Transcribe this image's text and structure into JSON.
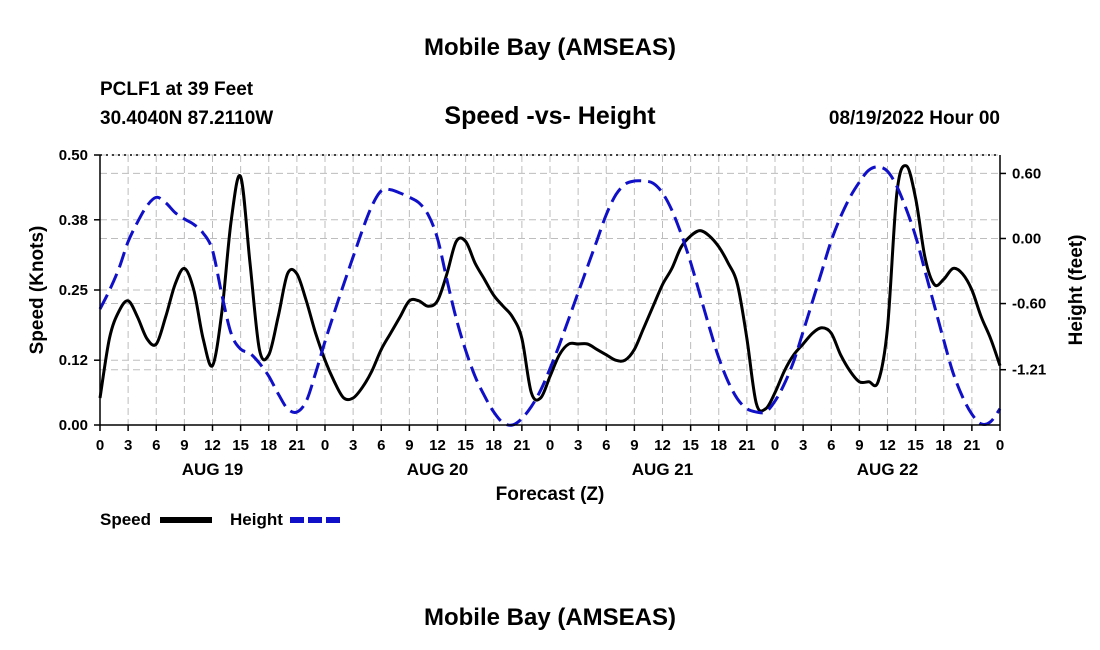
{
  "header": {
    "title": "Mobile Bay (AMSEAS)",
    "station": "PCLF1 at 39 Feet",
    "coords": "30.4040N  87.2110W",
    "subtitle": "Speed -vs- Height",
    "datetime": "08/19/2022 Hour 00"
  },
  "footer": {
    "title": "Mobile Bay (AMSEAS)"
  },
  "colors": {
    "speed": "#000000",
    "height": "#1010c8",
    "grid": "#bdbdbd"
  },
  "chart_data": {
    "type": "line",
    "xlabel": "Forecast (Z)",
    "ylabel": "Speed (Knots)",
    "y2label": "Height (feet)",
    "x_unit": "hours since 08/19/2022 00Z",
    "xlim": [
      0,
      96
    ],
    "ylim": [
      0,
      0.5
    ],
    "y2lim": [
      -1.72,
      0.77
    ],
    "y_ticks": [
      "0.00",
      "0.12",
      "0.25",
      "0.38",
      "0.50"
    ],
    "y2_ticks": [
      "0.60",
      "0.00",
      "-0.60",
      "-1.21"
    ],
    "y2_tick_values": [
      0.6,
      0.0,
      -0.6,
      -1.21
    ],
    "x_tick_labels": [
      "0",
      "3",
      "6",
      "9",
      "12",
      "15",
      "18",
      "21",
      "0",
      "3",
      "6",
      "9",
      "12",
      "15",
      "18",
      "21",
      "0",
      "3",
      "6",
      "9",
      "12",
      "15",
      "18",
      "21",
      "0",
      "3",
      "6",
      "9",
      "12",
      "15",
      "18",
      "21",
      "0"
    ],
    "day_labels": [
      {
        "label": "AUG 19",
        "x": 12
      },
      {
        "label": "AUG 20",
        "x": 36
      },
      {
        "label": "AUG 21",
        "x": 60
      },
      {
        "label": "AUG 22",
        "x": 84
      }
    ],
    "grid": true,
    "legend": {
      "position": "bottom-left",
      "entries": [
        "Speed",
        "Height"
      ]
    },
    "series": [
      {
        "name": "Speed",
        "style": "solid",
        "axis": "left",
        "x": [
          0,
          1,
          2,
          3,
          4,
          5,
          6,
          7,
          8,
          9,
          10,
          11,
          12,
          13,
          14,
          15,
          16,
          17,
          18,
          19,
          20,
          21,
          22,
          23,
          24,
          25,
          26,
          27,
          28,
          29,
          30,
          31,
          32,
          33,
          34,
          35,
          36,
          37,
          38,
          39,
          40,
          41,
          42,
          43,
          44,
          45,
          46,
          47,
          48,
          49,
          50,
          51,
          52,
          53,
          54,
          55,
          56,
          57,
          58,
          59,
          60,
          61,
          62,
          63,
          64,
          65,
          66,
          67,
          68,
          69,
          70,
          71,
          72,
          73,
          74,
          75,
          76,
          77,
          78,
          79,
          80,
          81,
          82,
          83,
          84,
          85,
          86,
          87,
          88,
          89,
          90,
          91,
          92,
          93,
          94,
          95,
          96
        ],
        "values": [
          0.05,
          0.16,
          0.21,
          0.23,
          0.2,
          0.16,
          0.15,
          0.2,
          0.26,
          0.29,
          0.25,
          0.16,
          0.11,
          0.21,
          0.38,
          0.46,
          0.3,
          0.14,
          0.13,
          0.2,
          0.28,
          0.28,
          0.23,
          0.17,
          0.12,
          0.08,
          0.05,
          0.05,
          0.07,
          0.1,
          0.14,
          0.17,
          0.2,
          0.23,
          0.23,
          0.22,
          0.23,
          0.28,
          0.34,
          0.34,
          0.3,
          0.27,
          0.24,
          0.22,
          0.2,
          0.16,
          0.06,
          0.05,
          0.09,
          0.13,
          0.15,
          0.15,
          0.15,
          0.14,
          0.13,
          0.12,
          0.12,
          0.14,
          0.18,
          0.22,
          0.26,
          0.29,
          0.33,
          0.35,
          0.36,
          0.35,
          0.33,
          0.3,
          0.26,
          0.16,
          0.04,
          0.03,
          0.06,
          0.1,
          0.13,
          0.15,
          0.17,
          0.18,
          0.17,
          0.13,
          0.1,
          0.08,
          0.08,
          0.08,
          0.18,
          0.43,
          0.48,
          0.42,
          0.31,
          0.26,
          0.27,
          0.29,
          0.28,
          0.25,
          0.2,
          0.16,
          0.11
        ]
      },
      {
        "name": "Height",
        "style": "dashed",
        "axis": "right",
        "x": [
          0,
          1,
          2,
          3,
          4,
          5,
          6,
          7,
          8,
          9,
          10,
          11,
          12,
          13,
          14,
          15,
          16,
          17,
          18,
          19,
          20,
          21,
          22,
          23,
          24,
          25,
          26,
          27,
          28,
          29,
          30,
          31,
          32,
          33,
          34,
          35,
          36,
          37,
          38,
          39,
          40,
          41,
          42,
          43,
          44,
          45,
          46,
          47,
          48,
          49,
          50,
          51,
          52,
          53,
          54,
          55,
          56,
          57,
          58,
          59,
          60,
          61,
          62,
          63,
          64,
          65,
          66,
          67,
          68,
          69,
          70,
          71,
          72,
          73,
          74,
          75,
          76,
          77,
          78,
          79,
          80,
          81,
          82,
          83,
          84,
          85,
          86,
          87,
          88,
          89,
          90,
          91,
          92,
          93,
          94,
          95,
          96
        ],
        "values": [
          -0.65,
          -0.48,
          -0.28,
          -0.03,
          0.15,
          0.3,
          0.38,
          0.33,
          0.24,
          0.18,
          0.13,
          0.05,
          -0.11,
          -0.52,
          -0.88,
          -1.02,
          -1.06,
          -1.15,
          -1.27,
          -1.43,
          -1.57,
          -1.6,
          -1.5,
          -1.24,
          -0.95,
          -0.68,
          -0.42,
          -0.17,
          0.08,
          0.3,
          0.44,
          0.45,
          0.42,
          0.38,
          0.33,
          0.22,
          0.0,
          -0.38,
          -0.74,
          -1.03,
          -1.27,
          -1.45,
          -1.6,
          -1.7,
          -1.72,
          -1.66,
          -1.55,
          -1.4,
          -1.2,
          -0.98,
          -0.74,
          -0.5,
          -0.26,
          -0.02,
          0.22,
          0.4,
          0.5,
          0.53,
          0.53,
          0.51,
          0.42,
          0.26,
          0.04,
          -0.22,
          -0.52,
          -0.82,
          -1.1,
          -1.32,
          -1.48,
          -1.57,
          -1.6,
          -1.6,
          -1.5,
          -1.34,
          -1.13,
          -0.86,
          -0.58,
          -0.3,
          -0.02,
          0.2,
          0.38,
          0.52,
          0.63,
          0.66,
          0.62,
          0.48,
          0.27,
          0.02,
          -0.3,
          -0.62,
          -0.94,
          -1.24,
          -1.46,
          -1.62,
          -1.71,
          -1.69,
          -1.57
        ]
      }
    ]
  }
}
